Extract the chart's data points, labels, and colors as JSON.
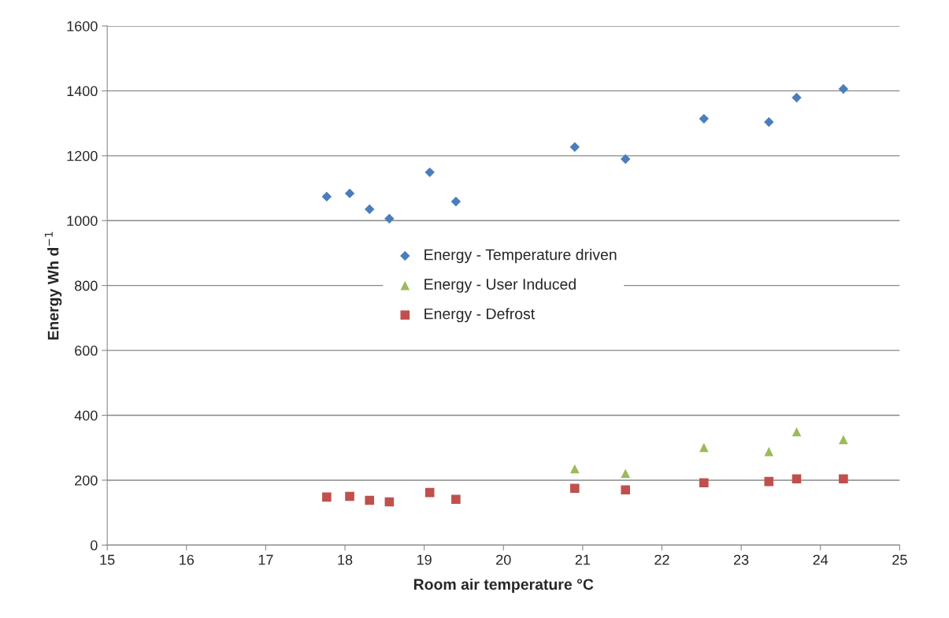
{
  "chart_data": {
    "type": "scatter",
    "xlabel": "Room air temperature °C",
    "ylabel": "Energy Wh d$^{−1}$",
    "x": [
      17.77,
      18.06,
      18.31,
      18.56,
      19.07,
      19.4,
      20.9,
      21.54,
      22.53,
      23.35,
      23.7,
      24.29
    ],
    "series": [
      {
        "name": "Energy - Temperature driven",
        "color": "#4a7ebb",
        "marker": "diamond",
        "values": [
          1074,
          1084,
          1035,
          1006,
          1149,
          1059,
          1227,
          1190,
          1314,
          1304,
          1379,
          1406
        ]
      },
      {
        "name": "Energy - User Induced",
        "color": "#9bbb59",
        "marker": "triangle",
        "values": [
          null,
          null,
          null,
          null,
          null,
          null,
          235,
          221,
          301,
          288,
          349,
          325
        ]
      },
      {
        "name": "Energy - Defrost",
        "color": "#c0504d",
        "marker": "square",
        "values": [
          148,
          150,
          138,
          133,
          162,
          141,
          175,
          170,
          192,
          196,
          204,
          204
        ]
      }
    ],
    "xlim": [
      15,
      25
    ],
    "xticks": [
      15,
      16,
      17,
      18,
      19,
      20,
      21,
      22,
      23,
      24,
      25
    ],
    "ylim": [
      0,
      1600
    ],
    "yticks": [
      0,
      200,
      400,
      600,
      800,
      1000,
      1200,
      1400,
      1600
    ],
    "grid": "y",
    "legend": "center"
  }
}
